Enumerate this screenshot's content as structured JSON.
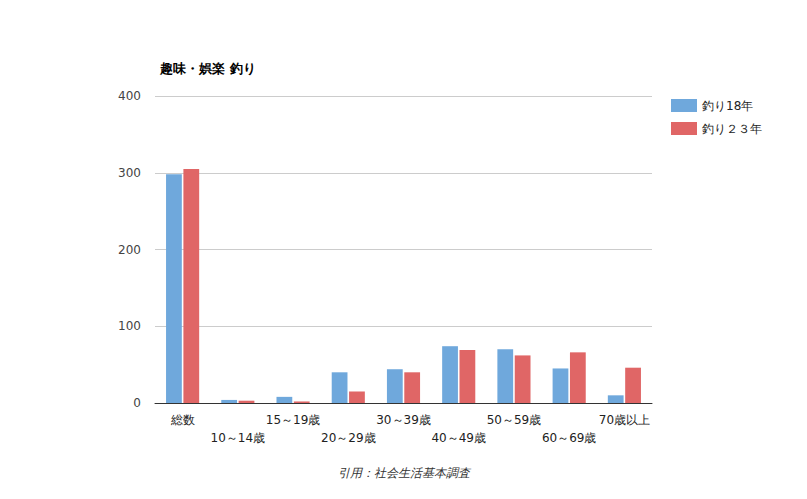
{
  "chart_data": {
    "type": "bar",
    "title": "趣味・娯楽 釣り",
    "subtitle": "引用：社会生活基本調査",
    "categories": [
      "総数",
      "10～14歳",
      "15～19歳",
      "20～29歳",
      "30～39歳",
      "40～49歳",
      "50～59歳",
      "60～69歳",
      "70歳以上"
    ],
    "series": [
      {
        "name": "釣り18年",
        "color": "#6fa8dc",
        "values": [
          298,
          4,
          8,
          40,
          44,
          74,
          70,
          45,
          10
        ]
      },
      {
        "name": "釣り２３年",
        "color": "#e06666",
        "values": [
          305,
          3,
          2,
          15,
          40,
          69,
          62,
          66,
          46
        ]
      }
    ],
    "ylim": [
      0,
      400
    ],
    "yticks": [
      0,
      100,
      200,
      300,
      400
    ],
    "grid": true,
    "legend": "right"
  }
}
